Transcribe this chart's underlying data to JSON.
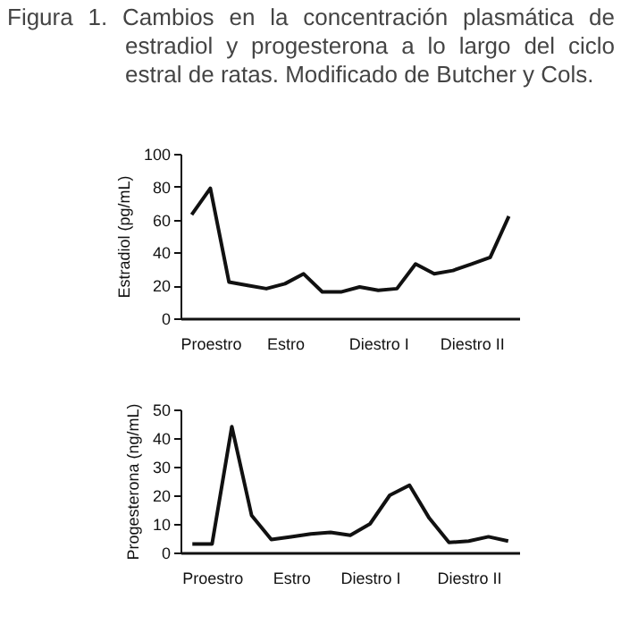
{
  "chart_data": [
    {
      "type": "line",
      "title": "Figura 1. Cambios en la concentración plasmática de estradiol y progesterona a lo largo del ciclo estral de ratas. Modificado de Butcher y Cols.",
      "ylabel": "Estradiol (pg/mL)",
      "categories": [
        null,
        "Proestro",
        null,
        null,
        null,
        "Estro",
        null,
        null,
        null,
        null,
        "Diestro I",
        null,
        null,
        null,
        null,
        "Diestro II",
        null,
        null
      ],
      "series": [
        {
          "color": "#111111",
          "values": [
            63,
            79,
            22,
            20,
            18,
            21,
            27,
            16,
            16,
            19,
            17,
            18,
            33,
            27,
            29,
            33,
            37,
            62
          ]
        }
      ],
      "ylim": [
        0,
        100
      ],
      "yticks": [
        0,
        20,
        40,
        60,
        80,
        100
      ],
      "grid": false,
      "marker": "none"
    },
    {
      "type": "line",
      "ylabel": "Progesterona (ng/mL)",
      "categories": [
        null,
        "Proestro",
        null,
        null,
        null,
        "Estro",
        null,
        null,
        null,
        "Diestro I",
        null,
        null,
        null,
        null,
        "Diestro II",
        null,
        null
      ],
      "series": [
        {
          "color": "#111111",
          "values": [
            3,
            3,
            44,
            13,
            4.5,
            5.5,
            6.5,
            7,
            6,
            10,
            20,
            23.5,
            12,
            3.5,
            4,
            5.5,
            4
          ]
        }
      ],
      "ylim": [
        0,
        50
      ],
      "yticks": [
        0,
        10,
        20,
        30,
        40,
        50
      ],
      "grid": false,
      "marker": "none"
    }
  ]
}
